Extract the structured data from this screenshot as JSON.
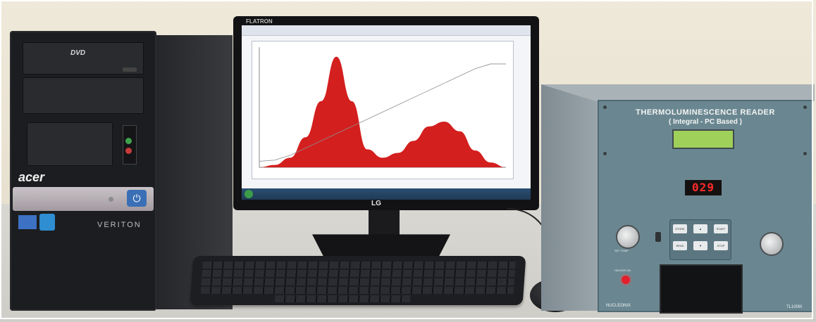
{
  "scene": {
    "description_free": true,
    "colors": {
      "wall": "#e9e4d8",
      "desk": "#d3d1cc",
      "curve_fill": "#d41f1f",
      "reader_panel": "#6a8791",
      "led": "#ff2b2b",
      "lcd": "#9fd05a"
    }
  },
  "pc": {
    "dvd_label": "DVD",
    "brand": "acer",
    "model": "VERITON"
  },
  "monitor": {
    "bezel_brand": "FLATRON",
    "logo": "LG",
    "chart_data": {
      "type": "area",
      "series": [
        {
          "values": [
            0,
            0.02,
            0.08,
            0.25,
            0.55,
            0.92,
            0.55,
            0.15,
            0.08,
            0.12,
            0.22,
            0.34,
            0.38,
            0.3,
            0.14,
            0.04,
            0.0
          ]
        }
      ],
      "overlay_line": [
        0.05,
        0.06,
        0.1,
        0.16,
        0.22,
        0.28,
        0.34,
        0.4,
        0.46,
        0.52,
        0.58,
        0.64,
        0.7,
        0.76,
        0.82,
        0.86,
        0.86
      ],
      "grid": false
    }
  },
  "reader": {
    "title": "THERMOLUMINESCENCE READER",
    "subtitle": "( Integral - PC Based )",
    "display_value": "029",
    "knob_left_label": "SET TEMP",
    "heater_label": "HEATER ON",
    "keypad": {
      "store": "STORE",
      "start": "START",
      "read": "READ",
      "stop": "STOP",
      "up": "▲",
      "down": "▼"
    },
    "manufacturer": "NUCLEONIX",
    "model": "TL1009I"
  }
}
